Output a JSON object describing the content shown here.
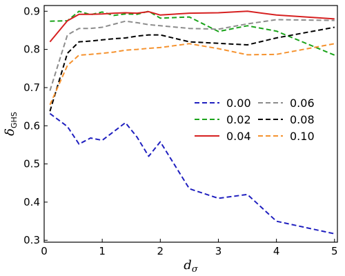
{
  "chart_data": {
    "type": "line",
    "title": "",
    "xlabel": "d_σ",
    "xlabel_base": "d",
    "xlabel_sub": "σ",
    "ylabel": "δ_GHS",
    "ylabel_base": "δ",
    "ylabel_sub": "GHS",
    "xlim": [
      0,
      5.05
    ],
    "ylim": [
      0.295,
      0.915
    ],
    "xticks": [
      0,
      1,
      2,
      3,
      4,
      5
    ],
    "yticks": [
      0.3,
      0.4,
      0.5,
      0.6,
      0.7,
      0.8,
      0.9
    ],
    "xtick_labels": [
      "0",
      "1",
      "2",
      "3",
      "4",
      "5"
    ],
    "ytick_labels": [
      "0.3",
      "0.4",
      "0.5",
      "0.6",
      "0.7",
      "0.8",
      "0.9"
    ],
    "grid": false,
    "legend_position": "center-right",
    "x": [
      0.1,
      0.4,
      0.6,
      0.8,
      1.0,
      1.2,
      1.4,
      1.6,
      1.8,
      2.0,
      2.5,
      3.0,
      3.5,
      4.0,
      5.0
    ],
    "series": [
      {
        "name": "0.00",
        "color": "#1f1fbf",
        "dashed": true,
        "values": [
          0.632,
          0.598,
          0.552,
          0.568,
          0.562,
          0.585,
          0.608,
          0.57,
          0.52,
          0.558,
          0.435,
          0.41,
          0.42,
          0.35,
          0.317
        ]
      },
      {
        "name": "0.02",
        "color": "#1aa31a",
        "dashed": true,
        "values": [
          0.874,
          0.875,
          0.9,
          0.891,
          0.898,
          0.889,
          0.893,
          0.892,
          0.9,
          0.882,
          0.885,
          0.847,
          0.862,
          0.848,
          0.785
        ]
      },
      {
        "name": "0.04",
        "color": "#d62020",
        "dashed": false,
        "values": [
          0.82,
          0.875,
          0.892,
          0.892,
          0.893,
          0.895,
          0.896,
          0.895,
          0.899,
          0.89,
          0.895,
          0.896,
          0.9,
          0.89,
          0.88
        ]
      },
      {
        "name": "0.06",
        "color": "#8c8c8c",
        "dashed": true,
        "values": [
          0.692,
          0.838,
          0.855,
          0.855,
          0.858,
          0.866,
          0.874,
          0.87,
          0.865,
          0.862,
          0.855,
          0.853,
          0.867,
          0.878,
          0.876
        ]
      },
      {
        "name": "0.08",
        "color": "#000000",
        "dashed": true,
        "values": [
          0.638,
          0.79,
          0.82,
          0.822,
          0.825,
          0.828,
          0.83,
          0.835,
          0.838,
          0.838,
          0.82,
          0.816,
          0.812,
          0.83,
          0.858
        ]
      },
      {
        "name": "0.10",
        "color": "#f5922e",
        "dashed": true,
        "values": [
          0.655,
          0.758,
          0.785,
          0.787,
          0.79,
          0.793,
          0.798,
          0.8,
          0.803,
          0.805,
          0.815,
          0.802,
          0.786,
          0.787,
          0.815
        ]
      }
    ]
  }
}
